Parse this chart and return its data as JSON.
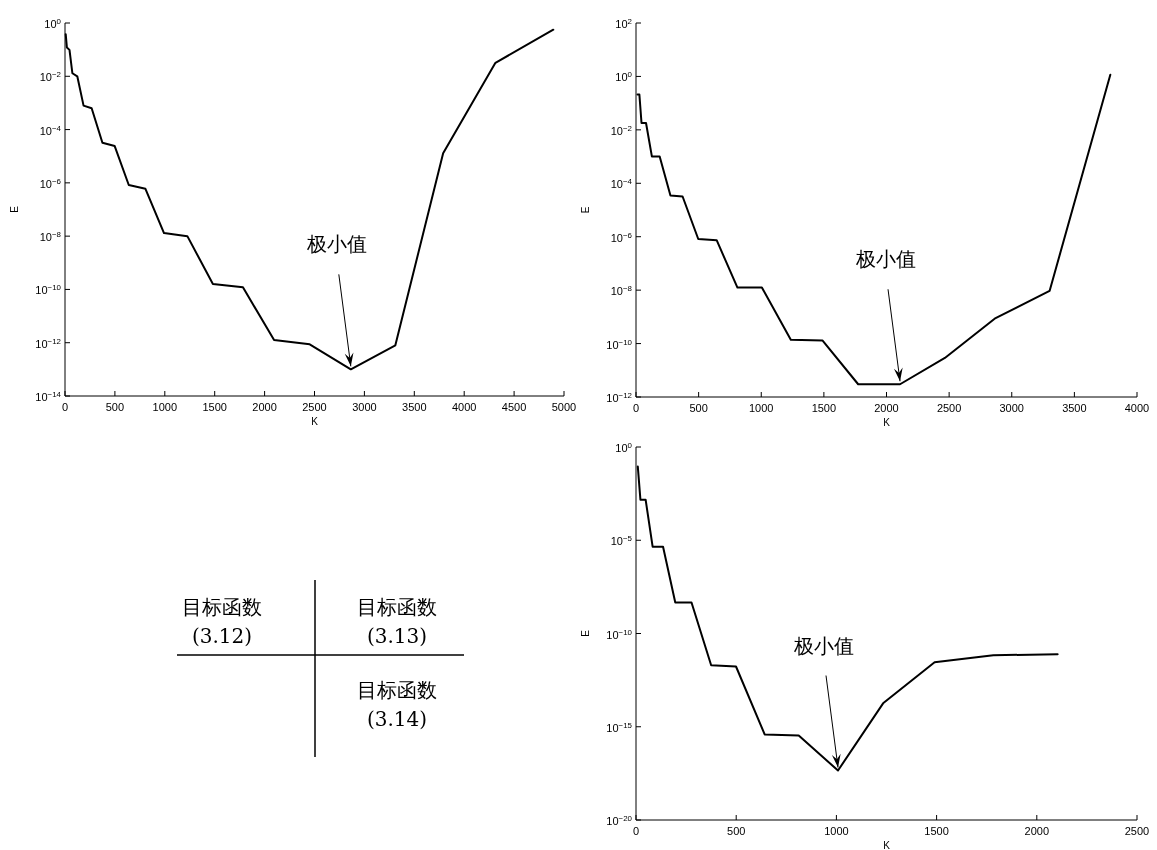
{
  "chart_data": [
    {
      "type": "line",
      "xlabel": "K",
      "ylabel": "E",
      "log": "y",
      "xlim": [
        0,
        5000
      ],
      "xticks": [
        0,
        500,
        1000,
        1500,
        2000,
        2500,
        3000,
        3500,
        4000,
        4500,
        5000
      ],
      "ylim": [
        1e-14,
        1
      ],
      "yticks": [
        {
          "value": 1e-14,
          "label": "10$^{−14}$"
        },
        {
          "value": 1e-12,
          "label": "10$^{−12}$"
        },
        {
          "value": 1e-10,
          "label": "10$^{−10}$"
        },
        {
          "value": 1e-08,
          "label": "10$^{−8}$"
        },
        {
          "value": 1e-06,
          "label": "10$^{−6}$"
        },
        {
          "value": 0.0001,
          "label": "10$^{−4}$"
        },
        {
          "value": 0.01,
          "label": "10$^{−2}$"
        },
        {
          "value": 1,
          "label": "10$^{0}$"
        }
      ],
      "annotations": [
        {
          "text": "极小值",
          "x": 2864,
          "y": 1e-13
        }
      ],
      "series": [
        {
          "color": "#000000",
          "x": [
            7,
            19,
            45,
            74,
            123,
            186,
            267,
            375,
            498,
            639,
            806,
            992,
            1226,
            1482,
            1783,
            2095,
            2452,
            2864,
            3310,
            3789,
            4313,
            4893
          ],
          "values": [
            0.38,
            0.12,
            0.098,
            0.013,
            0.01,
            0.00079,
            0.00063,
            3.2e-05,
            2.4e-05,
            8.3e-07,
            6e-07,
            1.3e-08,
            1e-08,
            1.6e-10,
            1.2e-10,
            1.26e-12,
            8.7e-13,
            1e-13,
            8e-13,
            1.3e-05,
            0.032,
            0.56
          ]
        }
      ]
    },
    {
      "type": "line",
      "xlabel": "K",
      "ylabel": "E",
      "log": "y",
      "xlim": [
        0,
        4000
      ],
      "xticks": [
        0,
        500,
        1000,
        1500,
        2000,
        2500,
        3000,
        3500,
        4000
      ],
      "ylim": [
        1e-12,
        100
      ],
      "yticks": [
        {
          "value": 1e-12,
          "label": "10$^{−12}$"
        },
        {
          "value": 1e-10,
          "label": "10$^{−10}$"
        },
        {
          "value": 1e-08,
          "label": "10$^{−8}$"
        },
        {
          "value": 1e-06,
          "label": "10$^{−6}$"
        },
        {
          "value": 0.0001,
          "label": "10$^{−4}$"
        },
        {
          "value": 0.01,
          "label": "10$^{−2}$"
        },
        {
          "value": 1,
          "label": "10$^{0}$"
        },
        {
          "value": 100,
          "label": "10$^{2}$"
        }
      ],
      "annotations": [
        {
          "text": "极小值",
          "x": 2108,
          "y": 3e-12
        }
      ],
      "series": [
        {
          "color": "#000000",
          "x": [
            12,
            27,
            44,
            80,
            127,
            189,
            275,
            372,
            497,
            644,
            810,
            1005,
            1236,
            1490,
            1774,
            2108,
            2466,
            2871,
            3302,
            3787
          ],
          "values": [
            0.21,
            0.21,
            0.018,
            0.018,
            0.001,
            0.001,
            3.5e-05,
            3.2e-05,
            8.2e-07,
            7.4e-07,
            1.25e-08,
            1.25e-08,
            1.4e-10,
            1.3e-10,
            3e-12,
            3e-12,
            2.9e-11,
            9e-10,
            9.3e-09,
            1.15
          ]
        }
      ]
    },
    {
      "type": "other",
      "annotations": [
        "目标函数\n(3.12)",
        "目标函数\n(3.13)",
        "目标函数\n(3.14)"
      ]
    },
    {
      "type": "line",
      "xlabel": "K",
      "ylabel": "E",
      "log": "y",
      "xlim": [
        0,
        2500
      ],
      "xticks": [
        0,
        500,
        1000,
        1500,
        2000,
        2500
      ],
      "ylim": [
        1e-20,
        1
      ],
      "yticks": [
        {
          "value": 1e-20,
          "label": "10$^{−20}$"
        },
        {
          "value": 1e-15,
          "label": "10$^{−15}$"
        },
        {
          "value": 1e-10,
          "label": "10$^{−10}$"
        },
        {
          "value": 1e-05,
          "label": "10$^{−5}$"
        },
        {
          "value": 1,
          "label": "10$^{0}$"
        }
      ],
      "annotations": [
        {
          "text": "极小值",
          "x": 1008,
          "y": 4.5e-18
        }
      ],
      "series": [
        {
          "color": "#000000",
          "x": [
            9,
            22,
            48,
            83,
            135,
            196,
            277,
            375,
            499,
            642,
            812,
            1008,
            1233,
            1490,
            1783,
            2104
          ],
          "values": [
            0.089,
            0.0015,
            0.0015,
            4.5e-06,
            4.5e-06,
            4.6e-09,
            4.6e-09,
            2e-12,
            1.7e-12,
            3.9e-16,
            3.4e-16,
            4.5e-18,
            1.8e-14,
            2.9e-12,
            6.8e-12,
            7.8e-12
          ]
        }
      ]
    }
  ]
}
